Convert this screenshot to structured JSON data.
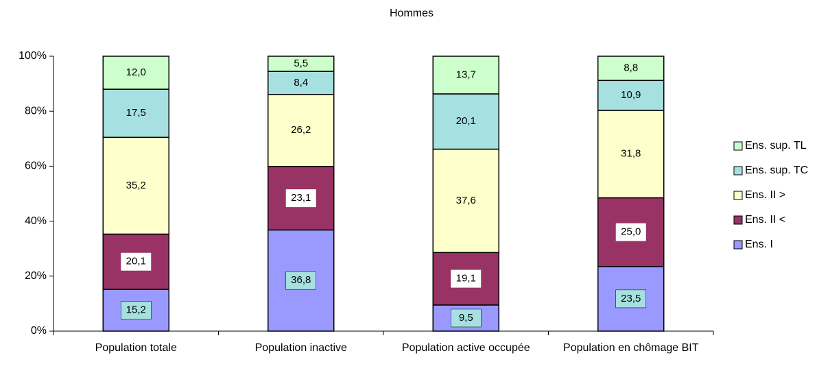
{
  "chart_data": {
    "type": "stacked_bar",
    "title": "Hommes",
    "categories": [
      "Population totale",
      "Population inactive",
      "Population active occupée",
      "Population en chômage BIT"
    ],
    "series": [
      {
        "name": "Ens.  I",
        "color": "#9999ff",
        "values": [
          15.2,
          36.8,
          9.5,
          23.5
        ],
        "value_labels": [
          "15,2",
          "36,8",
          "9,5",
          "23,5"
        ]
      },
      {
        "name": "Ens. II <",
        "color": "#993366",
        "values": [
          20.1,
          23.1,
          19.1,
          25.0
        ],
        "value_labels": [
          "20,1",
          "23,1",
          "19,1",
          "25,0"
        ]
      },
      {
        "name": "Ens. II >",
        "color": "#ffffcc",
        "values": [
          35.2,
          26.2,
          37.6,
          31.8
        ],
        "value_labels": [
          "35,2",
          "26,2",
          "37,6",
          "31,8"
        ]
      },
      {
        "name": "Ens. sup. TC",
        "color": "#a6e0e0",
        "values": [
          17.5,
          8.4,
          20.1,
          10.9
        ],
        "value_labels": [
          "17,5",
          "8,4",
          "20,1",
          "10,9"
        ]
      },
      {
        "name": "Ens. sup. TL",
        "color": "#ccffcc",
        "values": [
          12.0,
          5.5,
          13.7,
          8.8
        ],
        "value_labels": [
          "12,0",
          "5,5",
          "13,7",
          "8,8"
        ]
      }
    ],
    "ylim": [
      0,
      100
    ],
    "yticks": [
      {
        "value": 0,
        "label": "0%"
      },
      {
        "value": 20,
        "label": "20%"
      },
      {
        "value": 40,
        "label": "40%"
      },
      {
        "value": 60,
        "label": "60%"
      },
      {
        "value": 80,
        "label": "80%"
      },
      {
        "value": 100,
        "label": "100%"
      }
    ],
    "grid": false,
    "legend": "right"
  }
}
